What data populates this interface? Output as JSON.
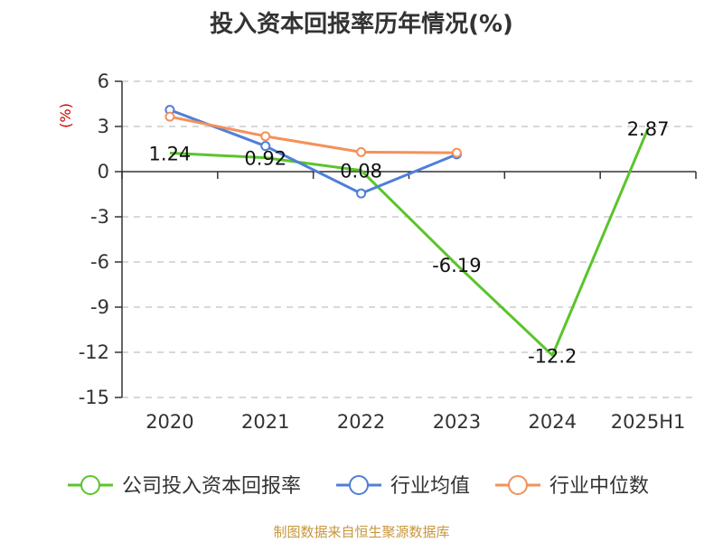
{
  "chart_data": {
    "type": "line",
    "title": "投入资本回报率历年情况(%)",
    "ylabel": "(%)",
    "categories": [
      "2020",
      "2021",
      "2022",
      "2023",
      "2024",
      "2025H1"
    ],
    "ylim": [
      -15,
      6
    ],
    "yticks": [
      6,
      3,
      0,
      -3,
      -6,
      -9,
      -12,
      -15
    ],
    "grid": true,
    "legend_position": "bottom",
    "series": [
      {
        "name": "公司投入资本回报率",
        "color": "#5bc42c",
        "values": [
          1.24,
          0.92,
          0.08,
          -6.19,
          -12.2,
          2.87
        ],
        "labels": [
          "1.24",
          "0.92",
          "0.08",
          "-6.19",
          "-12.2",
          "2.87"
        ],
        "show_markers": false
      },
      {
        "name": "行业均值",
        "color": "#4f7fd8",
        "values": [
          4.1,
          1.7,
          -1.45,
          1.15,
          null,
          null
        ],
        "show_markers": true
      },
      {
        "name": "行业中位数",
        "color": "#f5905a",
        "values": [
          3.65,
          2.35,
          1.3,
          1.25,
          null,
          null
        ],
        "show_markers": true
      }
    ]
  },
  "footer": {
    "source": "制图数据来自恒生聚源数据库"
  }
}
